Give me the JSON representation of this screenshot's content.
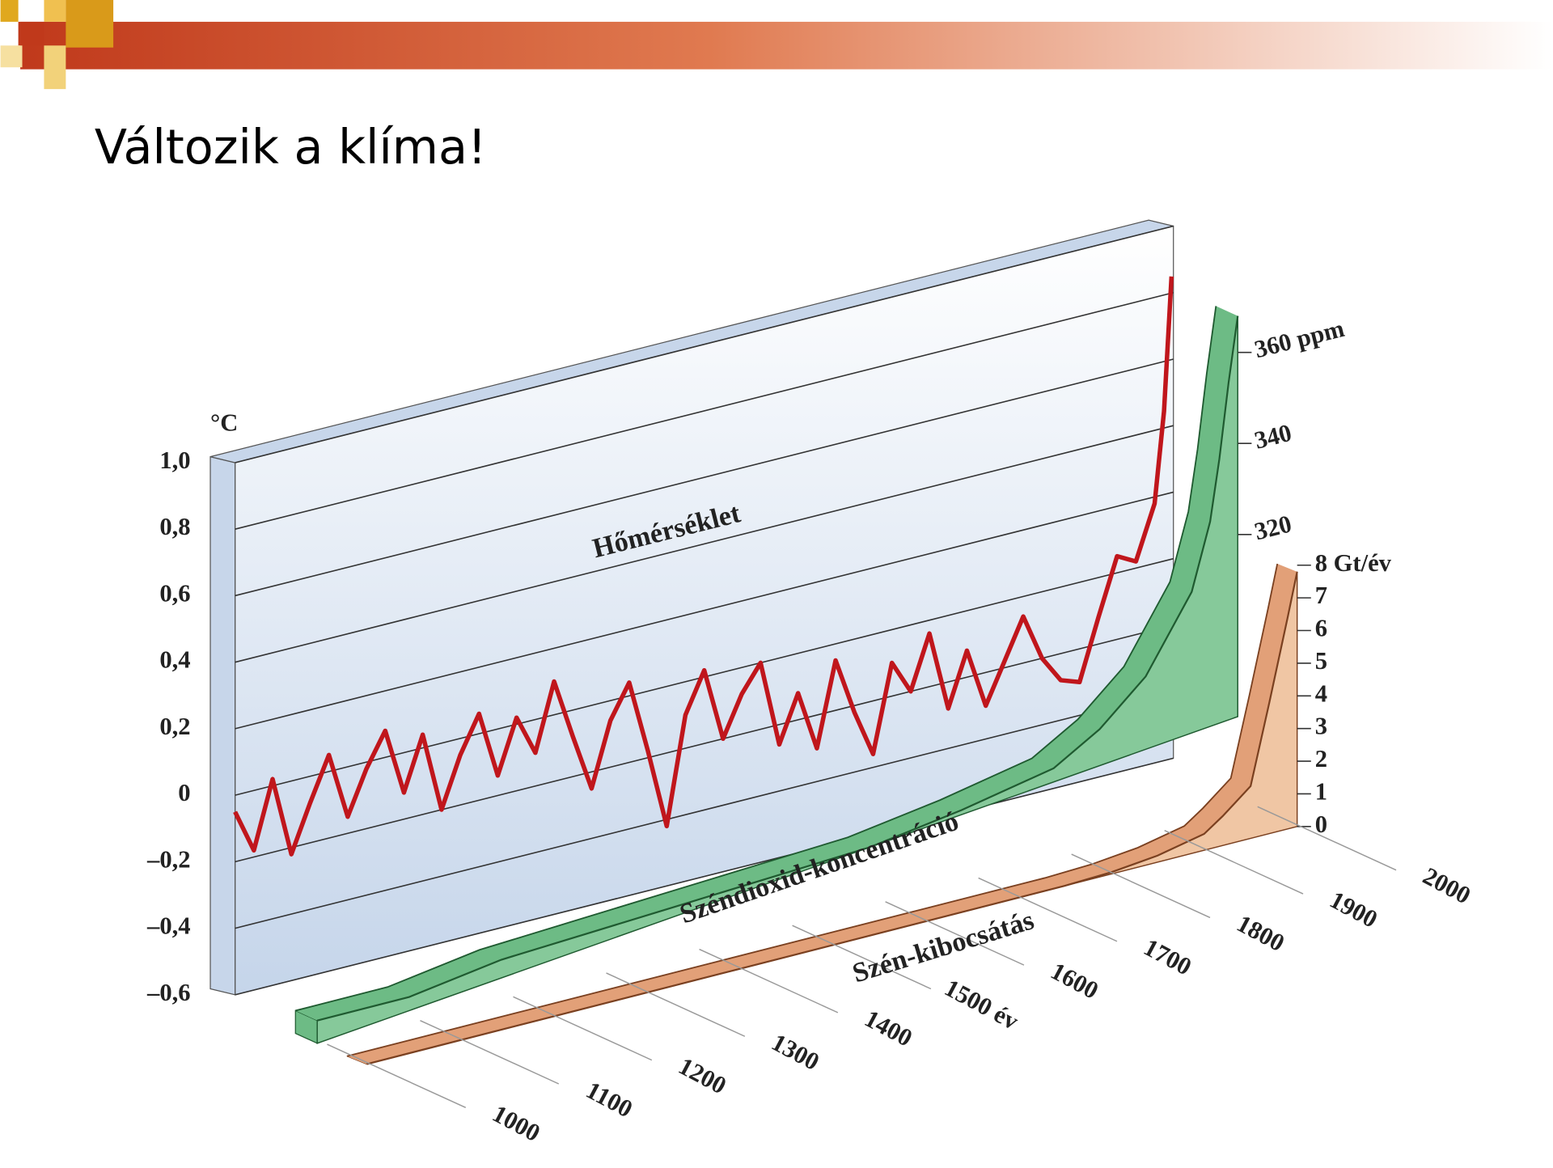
{
  "title": "Változik a klíma!",
  "chart_data": [
    {
      "type": "line",
      "title": "Hőmérséklet",
      "y_label": "°C",
      "color": "#c0161c",
      "xlim": [
        1000,
        2000
      ],
      "ylim": [
        -0.6,
        1.0
      ],
      "yticks": [
        {
          "value": -0.6,
          "label": "–0,6"
        },
        {
          "value": -0.4,
          "label": "–0,4"
        },
        {
          "value": -0.2,
          "label": "–0,2"
        },
        0,
        {
          "value": 0.2,
          "label": "0,2"
        },
        {
          "value": 0.4,
          "label": "0,4"
        },
        {
          "value": 0.6,
          "label": "0,6"
        },
        {
          "value": 0.8,
          "label": "0,8"
        },
        {
          "value": 1.0,
          "label": "1,0"
        }
      ],
      "x": [
        1000,
        1020,
        1040,
        1060,
        1080,
        1100,
        1120,
        1140,
        1160,
        1180,
        1200,
        1220,
        1240,
        1260,
        1280,
        1300,
        1320,
        1340,
        1360,
        1380,
        1400,
        1420,
        1440,
        1460,
        1480,
        1500,
        1520,
        1540,
        1560,
        1580,
        1600,
        1620,
        1640,
        1660,
        1680,
        1700,
        1720,
        1740,
        1760,
        1780,
        1800,
        1820,
        1840,
        1860,
        1880,
        1900,
        1920,
        1940,
        1960,
        1980,
        1990,
        1998
      ],
      "values": [
        -0.05,
        -0.18,
        0.02,
        -0.22,
        -0.08,
        0.05,
        -0.15,
        -0.02,
        0.08,
        -0.12,
        0.04,
        -0.2,
        -0.05,
        0.06,
        -0.14,
        0.02,
        -0.1,
        0.1,
        -0.08,
        -0.25,
        -0.06,
        0.04,
        -0.18,
        -0.42,
        -0.1,
        0.02,
        -0.2,
        -0.08,
        0.0,
        -0.26,
        -0.12,
        -0.3,
        -0.05,
        -0.22,
        -0.36,
        -0.1,
        -0.2,
        -0.04,
        -0.28,
        -0.12,
        -0.3,
        -0.18,
        -0.06,
        -0.2,
        -0.28,
        -0.3,
        -0.12,
        0.05,
        0.02,
        0.18,
        0.45,
        0.85
      ]
    },
    {
      "type": "area",
      "title": "Széndioxid-koncentráció",
      "color": "#86c99a",
      "xlim": [
        1000,
        2000
      ],
      "ylim": [
        280,
        370
      ],
      "yticks": [
        320,
        340,
        {
          "value": 360,
          "label": "360 ppm"
        }
      ],
      "x": [
        1000,
        1100,
        1200,
        1300,
        1400,
        1500,
        1600,
        1700,
        1800,
        1850,
        1900,
        1950,
        1970,
        1980,
        1990,
        2000
      ],
      "values": [
        285,
        283,
        284,
        283,
        282,
        281,
        280,
        281,
        283,
        288,
        296,
        311,
        325,
        338,
        354,
        368
      ]
    },
    {
      "type": "area",
      "title": "Szén-kibocsátás",
      "color": "#f0c6a4",
      "xlim": [
        1000,
        2000
      ],
      "ylim": [
        0,
        8
      ],
      "yticks": [
        0,
        1,
        2,
        3,
        4,
        5,
        6,
        7,
        {
          "value": 8,
          "label": "8 Gt/év"
        }
      ],
      "xticks": [
        1000,
        1100,
        1200,
        1300,
        1400,
        {
          "value": 1500,
          "label": "1500 év"
        },
        1600,
        1700,
        1800,
        1900,
        2000
      ],
      "x": [
        1000,
        1200,
        1400,
        1600,
        1750,
        1800,
        1850,
        1900,
        1920,
        1950,
        1970,
        1990,
        2000
      ],
      "values": [
        0,
        0,
        0,
        0,
        0,
        0.05,
        0.2,
        0.5,
        0.9,
        1.6,
        4,
        6.5,
        7.8
      ]
    }
  ]
}
